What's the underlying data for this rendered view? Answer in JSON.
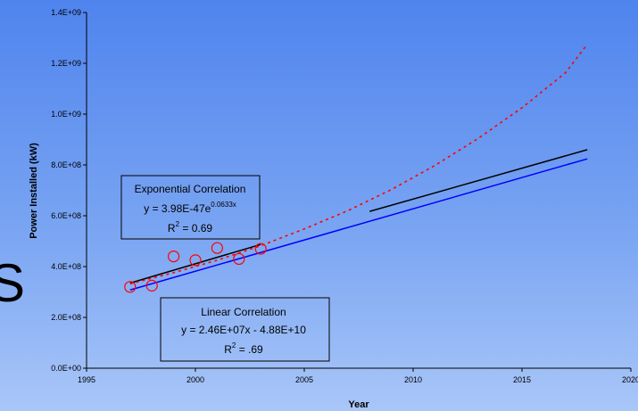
{
  "chart_data": {
    "type": "scatter",
    "xlabel": "Year",
    "ylabel": "Power Installed (kW)",
    "xlim": [
      1995,
      2020
    ],
    "ylim": [
      0,
      1400000000
    ],
    "x_ticks": [
      "1995",
      "2000",
      "2005",
      "2010",
      "2015",
      "2020"
    ],
    "y_ticks": [
      "0.0E+00",
      "2.0E+08",
      "4.0E+08",
      "6.0E+08",
      "8.0E+08",
      "1.0E+09",
      "1.2E+09",
      "1.4E+09"
    ],
    "grid": false,
    "legend": "none",
    "series": [
      {
        "kind": "points",
        "marker": "open-circle",
        "color": "#ff0000",
        "x": [
          1997,
          1998,
          1999,
          2000,
          2001,
          2002,
          2003
        ],
        "y": [
          320000000,
          325000000,
          440000000,
          425000000,
          473000000,
          430000000,
          470000000
        ]
      },
      {
        "kind": "trend-linear",
        "color": "#0000ff",
        "x": [
          1997,
          2018
        ],
        "y": [
          308000000,
          824000000
        ]
      },
      {
        "kind": "trend-linear",
        "color": "#000000",
        "x": [
          1997,
          2003
        ],
        "y": [
          335000000,
          487000000
        ]
      },
      {
        "kind": "trend-linear",
        "color": "#000000",
        "x": [
          2008,
          2018
        ],
        "y": [
          617000000,
          860000000
        ]
      },
      {
        "kind": "trend-exponential",
        "color": "#ff0000",
        "dashed": true,
        "x": [
          1997,
          1999,
          2001,
          2003,
          2005,
          2007,
          2009,
          2011,
          2013,
          2015,
          2017,
          2018
        ],
        "y": [
          332000000,
          376000000,
          425000000,
          482000000,
          548000000,
          620000000,
          703000000,
          798000000,
          905000000,
          1025000000,
          1163000000,
          1275000000
        ]
      }
    ],
    "annotations": {
      "exponential": {
        "title": "Exponential Correlation",
        "eq_base": "y = 3.98E-47e",
        "eq_exp": "0.0633x",
        "r2_lead": "R",
        "r2_sup": "2",
        "r2_tail": " = 0.69"
      },
      "linear": {
        "title": "Linear Correlation",
        "eq": "y = 2.46E+07x - 4.88E+10",
        "r2_lead": "R",
        "r2_sup": "2",
        "r2_tail": " = .69"
      }
    },
    "edge_glyph": "S"
  }
}
